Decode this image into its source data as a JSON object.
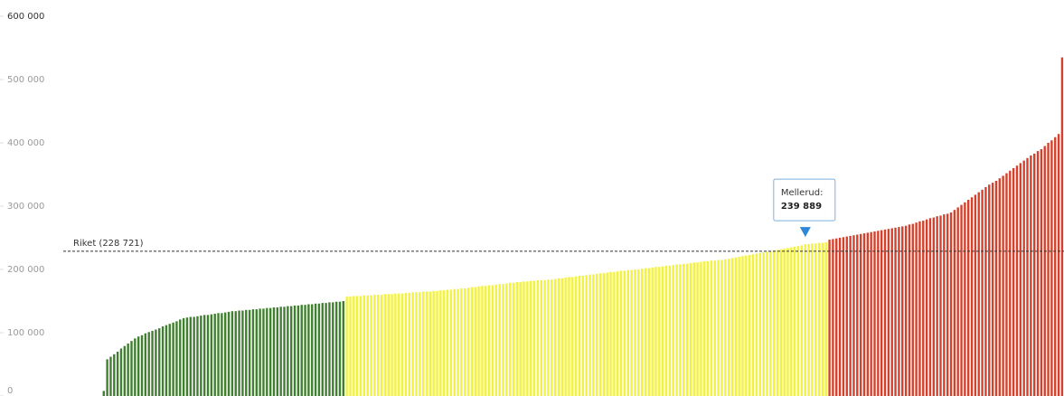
{
  "chart_data": {
    "type": "bar",
    "ylim": [
      0,
      600000
    ],
    "yticks": [
      {
        "value": 0,
        "label": "0"
      },
      {
        "value": 100000,
        "label": "100 000"
      },
      {
        "value": 200000,
        "label": "200 000"
      },
      {
        "value": 300000,
        "label": "300 000"
      },
      {
        "value": 400000,
        "label": "400 000"
      },
      {
        "value": 500000,
        "label": "500 000"
      },
      {
        "value": 600000,
        "label": "600 000"
      }
    ],
    "bar_colors": [
      {
        "max": 155000,
        "color": "#3f7f2f"
      },
      {
        "max": 245000,
        "color": "#f3f23e"
      },
      {
        "color": "#d5402c"
      }
    ],
    "reference": {
      "label": "Riket (228 721)",
      "value": 228721
    },
    "annotation": {
      "label": "Mellerud:",
      "value": 239889,
      "value_label": "239 889",
      "index": 202
    },
    "values": [
      8000,
      58000,
      62000,
      66000,
      70000,
      75000,
      79000,
      83000,
      87000,
      91000,
      94000,
      96000,
      99000,
      101000,
      103000,
      105000,
      107000,
      110000,
      112000,
      114000,
      116000,
      118000,
      121000,
      123000,
      124000,
      125000,
      125000,
      126000,
      127000,
      128000,
      128000,
      129000,
      130000,
      131000,
      131000,
      132000,
      133000,
      134000,
      134000,
      135000,
      135000,
      136000,
      136000,
      137000,
      137000,
      138000,
      138000,
      139000,
      139000,
      140000,
      140000,
      141000,
      141000,
      142000,
      142000,
      143000,
      143000,
      144000,
      144000,
      145000,
      145000,
      146000,
      146000,
      147000,
      147000,
      148000,
      148000,
      149000,
      149000,
      150000,
      157000,
      157000,
      158000,
      158000,
      158000,
      159000,
      159000,
      159000,
      160000,
      160000,
      160000,
      161000,
      161000,
      161000,
      162000,
      162000,
      162000,
      163000,
      163000,
      164000,
      164000,
      164000,
      165000,
      165000,
      165000,
      166000,
      166000,
      167000,
      167000,
      168000,
      168000,
      169000,
      169000,
      170000,
      170000,
      171000,
      172000,
      172000,
      173000,
      174000,
      174000,
      175000,
      175000,
      176000,
      177000,
      177000,
      178000,
      179000,
      179000,
      180000,
      180000,
      181000,
      181000,
      182000,
      182000,
      183000,
      183000,
      183000,
      184000,
      184000,
      185000,
      186000,
      186000,
      187000,
      188000,
      188000,
      189000,
      190000,
      190000,
      191000,
      192000,
      192000,
      193000,
      194000,
      194000,
      195000,
      196000,
      196000,
      197000,
      198000,
      198000,
      199000,
      199000,
      200000,
      200000,
      201000,
      202000,
      202000,
      203000,
      204000,
      204000,
      205000,
      206000,
      206000,
      207000,
      208000,
      208000,
      209000,
      209000,
      210000,
      211000,
      211000,
      212000,
      213000,
      213000,
      214000,
      214000,
      215000,
      215000,
      216000,
      217000,
      218000,
      219000,
      220000,
      221000,
      222000,
      223000,
      224000,
      225000,
      226000,
      227000,
      228000,
      229000,
      230000,
      231000,
      232000,
      233000,
      234000,
      235000,
      236000,
      237000,
      238000,
      239889,
      240000,
      241000,
      241000,
      242000,
      242000,
      243000,
      247000,
      248000,
      249000,
      250000,
      251000,
      252000,
      253000,
      254000,
      255000,
      256000,
      257000,
      258000,
      259000,
      260000,
      261000,
      262000,
      263000,
      264000,
      265000,
      266000,
      267000,
      268000,
      269000,
      271000,
      272000,
      274000,
      276000,
      277000,
      279000,
      281000,
      282000,
      284000,
      285000,
      287000,
      288000,
      290000,
      294000,
      298000,
      302000,
      306000,
      310000,
      314000,
      318000,
      322000,
      326000,
      330000,
      334000,
      337000,
      340000,
      344000,
      348000,
      352000,
      356000,
      360000,
      364000,
      368000,
      372000,
      376000,
      380000,
      383000,
      387000,
      390000,
      395000,
      400000,
      404000,
      409000,
      414000,
      535000
    ]
  }
}
